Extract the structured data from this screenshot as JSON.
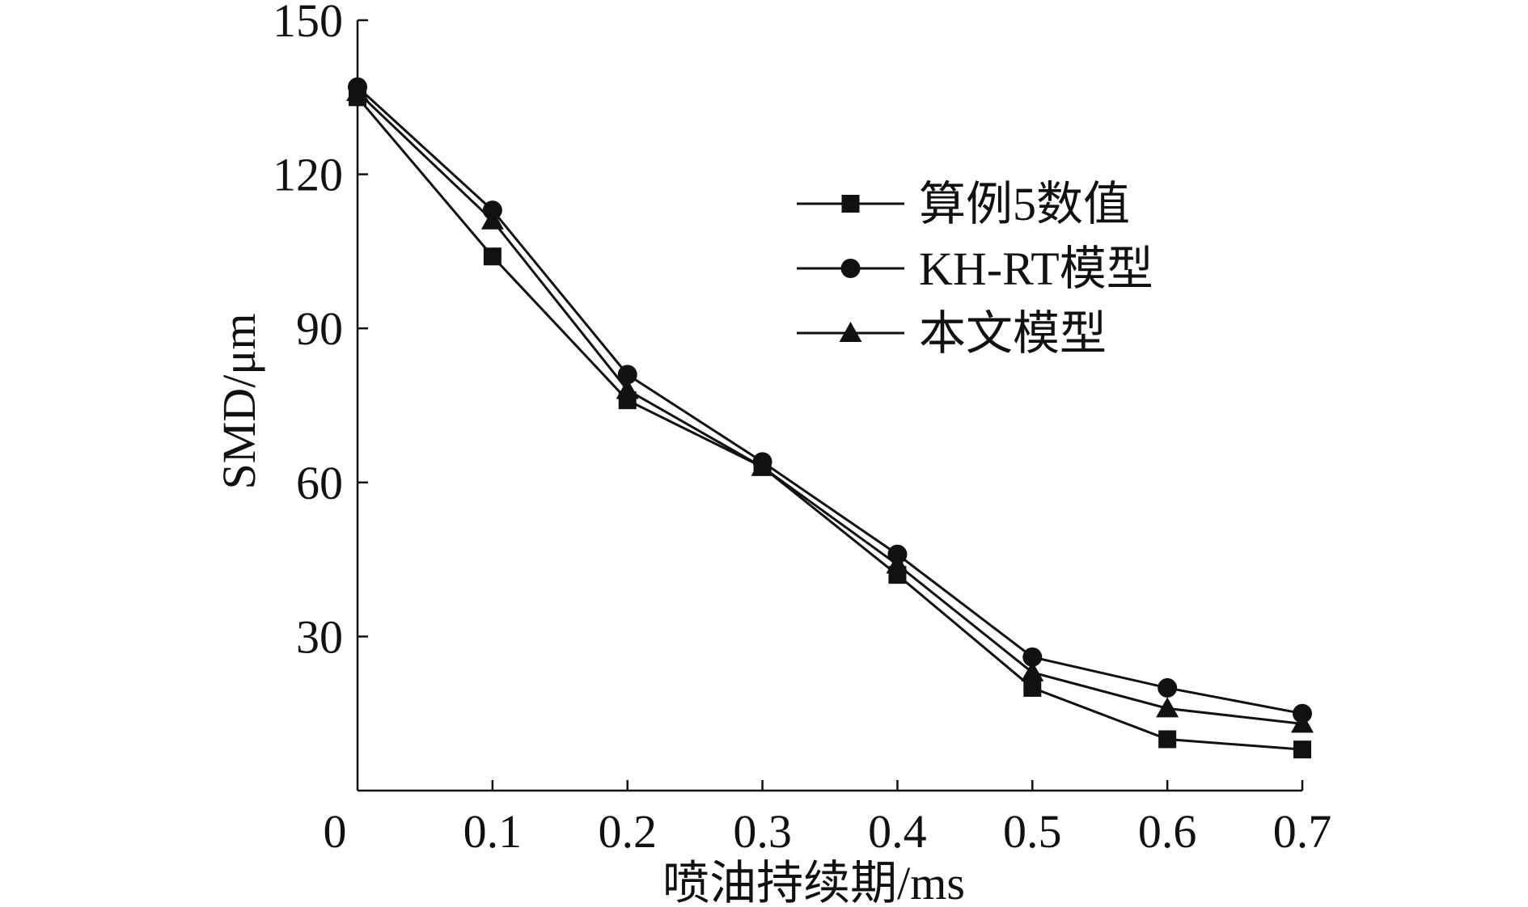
{
  "chart_data": {
    "type": "line",
    "title": "",
    "xlabel": "喷油持续期/ms",
    "ylabel": "SMD/μm",
    "xlim": [
      0,
      0.7
    ],
    "ylim": [
      0,
      150
    ],
    "x_ticks": [
      0,
      0.1,
      0.2,
      0.3,
      0.4,
      0.5,
      0.6,
      0.7
    ],
    "x_tick_labels": [
      "0",
      "0.1",
      "0.2",
      "0.3",
      "0.4",
      "0.5",
      "0.6",
      "0.7"
    ],
    "y_ticks": [
      30,
      60,
      90,
      120,
      150
    ],
    "y_tick_labels": [
      "30",
      "60",
      "90",
      "120",
      "150"
    ],
    "grid": false,
    "legend_position": "upper-right",
    "x": [
      0,
      0.1,
      0.2,
      0.3,
      0.4,
      0.5,
      0.6,
      0.7
    ],
    "series": [
      {
        "name": "算例5数值",
        "marker": "square",
        "values": [
          135,
          104,
          76,
          63,
          42,
          20,
          10,
          8
        ]
      },
      {
        "name": "KH-RT模型",
        "marker": "circle",
        "values": [
          137,
          113,
          81,
          64,
          46,
          26,
          20,
          15
        ]
      },
      {
        "name": "本文模型",
        "marker": "triangle",
        "values": [
          136,
          111,
          78,
          63,
          44,
          23,
          16,
          13
        ]
      }
    ]
  }
}
